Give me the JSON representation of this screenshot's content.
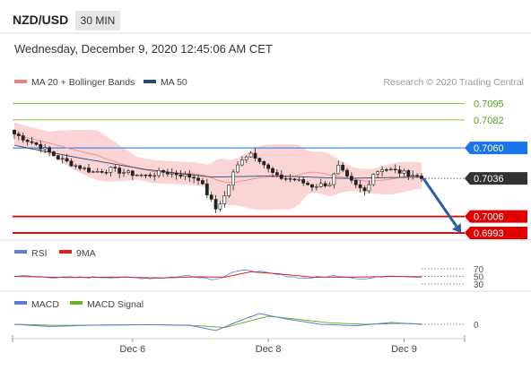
{
  "header": {
    "pair": "NZD/USD",
    "timeframe": "30 MIN",
    "datetime": "Wednesday, December 9, 2020 12:45:06 AM CET"
  },
  "legend": {
    "bollinger": "MA 20 + Bollinger Bands",
    "ma50": "MA 50",
    "credit": "Research © 2020 Trading Central",
    "rsi": "RSI",
    "rsi_ma": "9MA",
    "macd": "MACD",
    "macd_signal": "MACD Signal"
  },
  "colors": {
    "bollinger": "#f08080",
    "band_fill": "#fbd5d5",
    "ma50": "#27487a",
    "resistance": "#8cc63f",
    "pivot": "#1a73e8",
    "support": "#e00000",
    "current": "#333333",
    "arrow": "#2a5da8",
    "rsi": "#5b7fd6",
    "rsi_ma": "#e02020",
    "macd": "#5b7fd6",
    "macd_signal": "#6ab42d",
    "candle_up": "#ffffff",
    "candle_down": "#222222"
  },
  "chart_data": {
    "type": "candlestick",
    "ylim": [
      0.69895,
      0.71045
    ],
    "levels": [
      {
        "value": 0.7095,
        "label": "0.7095",
        "kind": "resistance"
      },
      {
        "value": 0.7082,
        "label": "0.7082",
        "kind": "resistance"
      },
      {
        "value": 0.706,
        "label": "0.7060",
        "kind": "pivot"
      },
      {
        "value": 0.7036,
        "label": "0.7036",
        "kind": "current"
      },
      {
        "value": 0.7006,
        "label": "0.7006",
        "kind": "support"
      },
      {
        "value": 0.6993,
        "label": "0.6993",
        "kind": "support"
      }
    ],
    "x_ticks": [
      "Dec 6",
      "Dec 8",
      "Dec 9"
    ],
    "x_tick_bars": [
      27,
      58,
      89
    ],
    "close_anchors": [
      [
        0,
        0.7071
      ],
      [
        3,
        0.7066
      ],
      [
        6,
        0.7061
      ],
      [
        10,
        0.7052
      ],
      [
        14,
        0.7046
      ],
      [
        18,
        0.7041
      ],
      [
        22,
        0.7043
      ],
      [
        26,
        0.704
      ],
      [
        30,
        0.7038
      ],
      [
        34,
        0.7041
      ],
      [
        38,
        0.7039
      ],
      [
        42,
        0.7036
      ],
      [
        44,
        0.7024
      ],
      [
        46,
        0.7012
      ],
      [
        48,
        0.7022
      ],
      [
        50,
        0.704
      ],
      [
        52,
        0.7052
      ],
      [
        54,
        0.7056
      ],
      [
        56,
        0.7051
      ],
      [
        58,
        0.7043
      ],
      [
        60,
        0.7037
      ],
      [
        64,
        0.7035
      ],
      [
        68,
        0.703
      ],
      [
        72,
        0.7032
      ],
      [
        74,
        0.7045
      ],
      [
        76,
        0.7036
      ],
      [
        78,
        0.703
      ],
      [
        80,
        0.7026
      ],
      [
        82,
        0.704
      ],
      [
        84,
        0.7044
      ],
      [
        88,
        0.7041
      ],
      [
        91,
        0.7039
      ],
      [
        93,
        0.7036
      ]
    ],
    "ma50_anchors": [
      [
        0,
        0.7062
      ],
      [
        15,
        0.7052
      ],
      [
        30,
        0.7043
      ],
      [
        45,
        0.7037
      ],
      [
        60,
        0.7038
      ],
      [
        75,
        0.7036
      ],
      [
        93,
        0.7037
      ]
    ],
    "rsi": {
      "ticks": [
        70,
        50,
        30
      ],
      "rsi_anchors": [
        [
          0,
          52
        ],
        [
          10,
          47
        ],
        [
          22,
          48
        ],
        [
          32,
          45
        ],
        [
          40,
          52
        ],
        [
          46,
          42
        ],
        [
          50,
          62
        ],
        [
          54,
          66
        ],
        [
          58,
          58
        ],
        [
          66,
          45
        ],
        [
          74,
          52
        ],
        [
          80,
          43
        ],
        [
          86,
          53
        ],
        [
          93,
          48
        ]
      ],
      "ma_anchors": [
        [
          0,
          50
        ],
        [
          12,
          47
        ],
        [
          24,
          48
        ],
        [
          34,
          46
        ],
        [
          42,
          49
        ],
        [
          48,
          48
        ],
        [
          54,
          62
        ],
        [
          60,
          57
        ],
        [
          68,
          48
        ],
        [
          78,
          48
        ],
        [
          86,
          50
        ],
        [
          93,
          49
        ]
      ]
    },
    "macd": {
      "zero_label": "0",
      "macd_anchors": [
        [
          0,
          0.0
        ],
        [
          8,
          -0.12
        ],
        [
          18,
          -0.05
        ],
        [
          30,
          -0.02
        ],
        [
          40,
          -0.05
        ],
        [
          46,
          -0.35
        ],
        [
          52,
          0.25
        ],
        [
          56,
          0.6
        ],
        [
          62,
          0.3
        ],
        [
          70,
          0.0
        ],
        [
          78,
          -0.08
        ],
        [
          86,
          0.1
        ],
        [
          93,
          0.0
        ]
      ],
      "signal_anchors": [
        [
          0,
          0.0
        ],
        [
          10,
          -0.06
        ],
        [
          20,
          -0.04
        ],
        [
          32,
          -0.02
        ],
        [
          42,
          -0.08
        ],
        [
          48,
          -0.18
        ],
        [
          54,
          0.2
        ],
        [
          58,
          0.45
        ],
        [
          64,
          0.3
        ],
        [
          72,
          0.08
        ],
        [
          80,
          0.0
        ],
        [
          88,
          0.05
        ],
        [
          93,
          0.02
        ]
      ]
    },
    "forecast_arrow": {
      "from_bar": 93,
      "from": 0.7036,
      "to": 0.6993
    }
  }
}
